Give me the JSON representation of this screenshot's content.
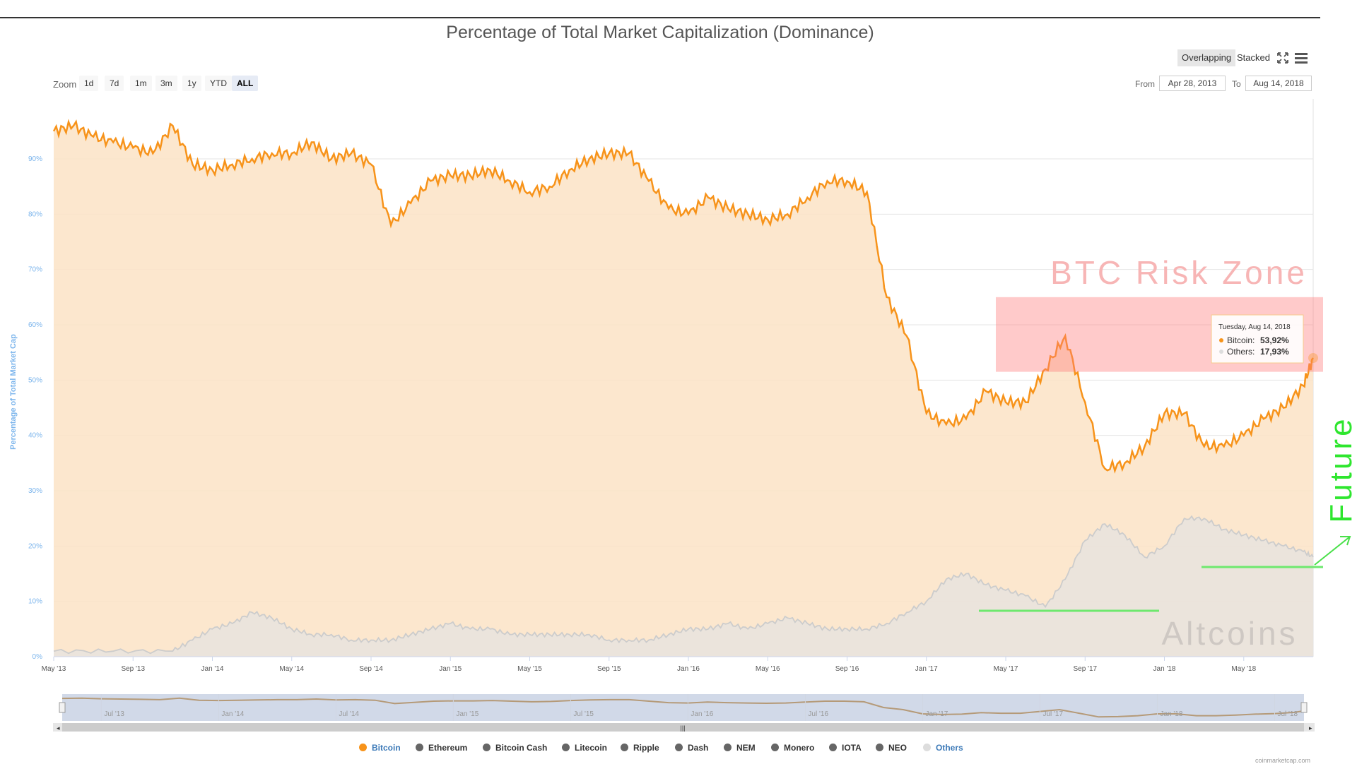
{
  "header": {
    "title": "Percentage of Total Market Capitalization (Dominance)",
    "mode_overlapping": "Overlapping",
    "mode_stacked": "Stacked",
    "fullscreen_icon": "fullscreen-icon",
    "menu_icon": "hamburger-menu-icon"
  },
  "zoom": {
    "label": "Zoom",
    "buttons": [
      "1d",
      "7d",
      "1m",
      "3m",
      "1y",
      "YTD",
      "ALL"
    ],
    "active": "ALL"
  },
  "range": {
    "from_label": "From",
    "from_value": "Apr 28, 2013",
    "to_label": "To",
    "to_value": "Aug 14, 2018"
  },
  "tooltip": {
    "date": "Tuesday, Aug 14, 2018",
    "bitcoin_label": "Bitcoin:",
    "bitcoin_value": "53,92%",
    "others_label": "Others:",
    "others_value": "17,93%"
  },
  "annotations": {
    "risk_zone": "BTC Risk Zone",
    "altcoins": "Altcoins",
    "future": "Future",
    "risk_zone_range": [
      51.5,
      65
    ]
  },
  "legend": [
    {
      "name": "Bitcoin",
      "color": "#f7931a",
      "label_color": "#3d7ab8"
    },
    {
      "name": "Ethereum",
      "color": "#666666",
      "label_color": "#333333"
    },
    {
      "name": "Bitcoin Cash",
      "color": "#666666",
      "label_color": "#333333"
    },
    {
      "name": "Litecoin",
      "color": "#666666",
      "label_color": "#333333"
    },
    {
      "name": "Ripple",
      "color": "#666666",
      "label_color": "#333333"
    },
    {
      "name": "Dash",
      "color": "#666666",
      "label_color": "#333333"
    },
    {
      "name": "NEM",
      "color": "#666666",
      "label_color": "#333333"
    },
    {
      "name": "Monero",
      "color": "#666666",
      "label_color": "#333333"
    },
    {
      "name": "IOTA",
      "color": "#666666",
      "label_color": "#333333"
    },
    {
      "name": "NEO",
      "color": "#666666",
      "label_color": "#333333"
    },
    {
      "name": "Others",
      "color": "#dddddd",
      "label_color": "#3d7ab8"
    }
  ],
  "navigator": {
    "labels": [
      "Jul '13",
      "Jan '14",
      "Jul '14",
      "Jan '15",
      "Jul '15",
      "Jan '16",
      "Jul '16",
      "Jan '17",
      "Jul '17",
      "Jan '18",
      "Jul '18"
    ]
  },
  "credit": "coinmarketcap.com",
  "chart_data": {
    "type": "area",
    "title": "Percentage of Total Market Capitalization (Dominance)",
    "ylabel": "Percentage of Total Market Cap",
    "ylim": [
      0,
      100
    ],
    "yticks": [
      "0%",
      "10%",
      "20%",
      "30%",
      "40%",
      "50%",
      "60%",
      "70%",
      "80%",
      "90%"
    ],
    "xticks": [
      "May '13",
      "Sep '13",
      "Jan '14",
      "May '14",
      "Sep '14",
      "Jan '15",
      "May '15",
      "Sep '15",
      "Jan '16",
      "May '16",
      "Sep '16",
      "Jan '17",
      "May '17",
      "Sep '17",
      "Jan '18",
      "May '18"
    ],
    "x_months_range": [
      0,
      63.5
    ],
    "series": [
      {
        "name": "Bitcoin",
        "color": "#f7931a",
        "x": [
          0,
          1,
          2,
          3,
          4,
          5,
          6,
          7,
          8,
          9,
          10,
          11,
          12,
          13,
          14,
          15,
          16,
          17,
          18,
          19,
          20,
          21,
          22,
          23,
          24,
          25,
          26,
          27,
          28,
          29,
          30,
          31,
          32,
          33,
          34,
          35,
          36,
          37,
          38,
          39,
          40,
          41,
          42,
          43,
          44,
          45,
          46,
          47,
          48,
          49,
          50,
          51,
          52,
          53,
          54,
          55,
          56,
          57,
          58,
          59,
          60,
          61,
          62,
          63,
          63.5
        ],
        "values": [
          95,
          96,
          94,
          93,
          92,
          91,
          96,
          89,
          88,
          89,
          90,
          91,
          91,
          93,
          90,
          91,
          89,
          78,
          82,
          86,
          87,
          87,
          88,
          86,
          84,
          85,
          88,
          90,
          91,
          91,
          86,
          81,
          80,
          83,
          81,
          80,
          79,
          80,
          83,
          86,
          86,
          84,
          65,
          58,
          44,
          42,
          43,
          48,
          46,
          46,
          52,
          58,
          46,
          34,
          35,
          38,
          44,
          44,
          38,
          38,
          40,
          43,
          45,
          49,
          54
        ]
      },
      {
        "name": "Others",
        "color": "#cccccc",
        "x": [
          0,
          3,
          6,
          7,
          8,
          9,
          10,
          11,
          12,
          13,
          14,
          15,
          16,
          17,
          18,
          19,
          20,
          21,
          22,
          23,
          24,
          25,
          26,
          27,
          28,
          29,
          30,
          31,
          32,
          33,
          34,
          35,
          36,
          37,
          38,
          39,
          40,
          41,
          42,
          43,
          44,
          45,
          46,
          47,
          48,
          49,
          50,
          51,
          52,
          53,
          54,
          55,
          56,
          57,
          58,
          59,
          60,
          61,
          62,
          63,
          63.5
        ],
        "values": [
          1,
          1,
          1,
          3,
          5,
          6,
          8,
          7,
          5,
          4,
          4,
          3,
          3,
          3,
          4,
          5,
          6,
          5,
          5,
          4,
          4,
          4,
          4,
          4,
          3,
          3,
          3,
          4,
          5,
          5,
          6,
          5,
          6,
          7,
          6,
          5,
          5,
          5,
          6,
          8,
          10,
          14,
          15,
          13,
          12,
          11,
          9,
          14,
          21,
          24,
          22,
          18,
          20,
          25,
          25,
          23,
          22,
          21,
          20,
          19,
          18
        ]
      }
    ]
  }
}
